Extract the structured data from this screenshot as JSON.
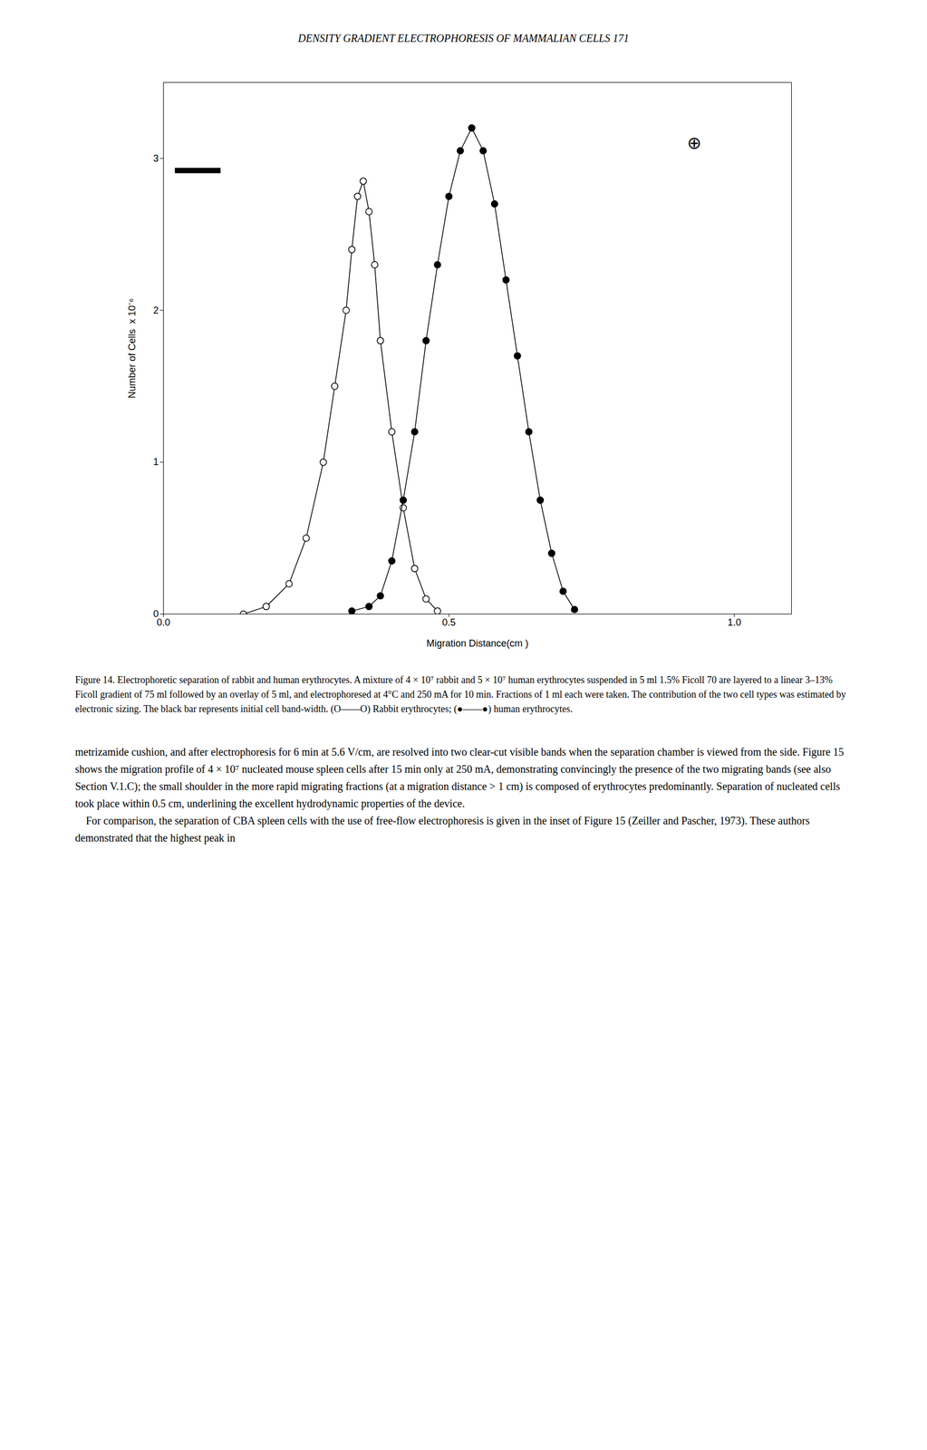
{
  "chart_data": {
    "type": "line",
    "title": "DENSITY GRADIENT ELECTROPHORESIS OF MAMMALIAN CELLS  171",
    "x_label": "Migration Distance(cm )",
    "y_label": "Number of Cells  x 10⁻⁶",
    "xlim": [
      0,
      1.1
    ],
    "ylim": [
      0,
      3.5
    ],
    "xticks": [
      {
        "value": 0,
        "label": "0.0"
      },
      0.5,
      {
        "value": 1.0,
        "label": "1.0"
      }
    ],
    "yticks": [
      0,
      1,
      2,
      3
    ],
    "series": [
      {
        "color": "black",
        "marker": "open_circle",
        "line_style": "solid",
        "x": [
          0.14,
          0.18,
          0.22,
          0.25,
          0.28,
          0.3,
          0.32,
          0.33,
          0.34,
          0.35,
          0.36,
          0.37,
          0.38,
          0.4,
          0.42,
          0.44,
          0.46,
          0.48
        ],
        "values": [
          0.0,
          0.05,
          0.2,
          0.5,
          1.0,
          1.5,
          2.0,
          2.4,
          2.75,
          2.85,
          2.65,
          2.3,
          1.8,
          1.2,
          0.7,
          0.3,
          0.1,
          0.02
        ]
      },
      {
        "color": "black",
        "marker": "filled_circle",
        "line_style": "solid",
        "x": [
          0.33,
          0.36,
          0.38,
          0.4,
          0.42,
          0.44,
          0.46,
          0.48,
          0.5,
          0.52,
          0.54,
          0.56,
          0.58,
          0.6,
          0.62,
          0.64,
          0.66,
          0.68,
          0.7,
          0.72
        ],
        "values": [
          0.02,
          0.05,
          0.12,
          0.35,
          0.75,
          1.2,
          1.8,
          2.3,
          2.75,
          3.05,
          3.2,
          3.05,
          2.7,
          2.2,
          1.7,
          1.2,
          0.75,
          0.4,
          0.15,
          0.03
        ]
      }
    ],
    "annotations": [
      {
        "text": "⊕",
        "x": 0.93,
        "y": 3.1
      }
    ],
    "black_bar": {
      "x": [
        0.02,
        0.1
      ],
      "y": 2.92,
      "color": "black"
    },
    "caption": "Figure 14.  Electrophoretic separation of rabbit and human erythrocytes. A mixture of 4 × 10⁷ rabbit and 5 × 10⁷ human erythrocytes suspended in 5 ml 1.5% Ficoll 70 are layered to a linear 3–13% Ficoll gradient of 75 ml followed by an overlay of 5 ml, and electrophoresed at 4°C and 250 mA for 10 min. Fractions of 1 ml each were taken. The contribution of the two cell types was estimated by electronic sizing. The black bar represents initial cell band-width. (O——O) Rabbit erythrocytes; (●——●) human erythrocytes.",
    "body_text": [
      "metrizamide cushion, and after electrophoresis for 6 min at 5.6 V/cm, are resolved into two clear-cut visible bands when the separation chamber is viewed from the side. Figure 15 shows the migration profile of 4 × 10⁷ nucleated mouse spleen cells after 15 min only at 250 mA, demonstrating convincingly the presence of the two migrating bands (see also Section V.1.C); the small shoulder in the more rapid migrating fractions (at a migration distance > 1 cm) is composed of erythrocytes predominantly. Separation of nucleated cells took place within 0.5 cm, underlining the excellent hydrodynamic properties of the device.",
      "    For comparison, the separation of CBA spleen cells with the use of free-flow electrophoresis is given in the inset of Figure 15 (Zeiller and Pascher, 1973). These authors demonstrated that the highest peak in"
    ]
  }
}
